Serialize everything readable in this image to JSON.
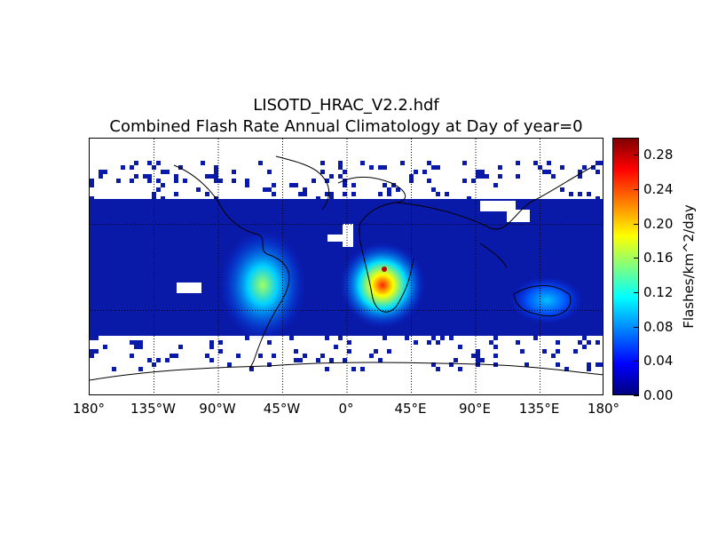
{
  "title": {
    "line1": "LISOTD_HRAC_V2.2.hdf",
    "line2": "Combined Flash Rate Annual Climatology at Day of year=0"
  },
  "map": {
    "projection": "cylindrical",
    "lon_range": [
      -180,
      180
    ],
    "lat_range": [
      -90,
      90
    ],
    "data_lat_range": [
      -38,
      38
    ],
    "graticule": true,
    "coastlines": true,
    "hotspots": [
      {
        "region": "Central Africa",
        "lon": 25,
        "lat": -2,
        "value": 0.28
      },
      {
        "region": "South America",
        "lon": -55,
        "lat": -20,
        "value": 0.16
      },
      {
        "region": "Northern Australia",
        "lon": 135,
        "lat": -15,
        "value": 0.08
      }
    ],
    "background_value": 0.02
  },
  "x_axis": {
    "ticks": [
      {
        "value": -180,
        "label": "180°"
      },
      {
        "value": -135,
        "label": "135°W"
      },
      {
        "value": -90,
        "label": "90°W"
      },
      {
        "value": -45,
        "label": "45°W"
      },
      {
        "value": 0,
        "label": "0°"
      },
      {
        "value": 45,
        "label": "45°E"
      },
      {
        "value": 90,
        "label": "90°E"
      },
      {
        "value": 135,
        "label": "135°E"
      },
      {
        "value": 180,
        "label": "180°"
      }
    ]
  },
  "colorbar": {
    "label": "Flashes/km^2/day",
    "range": [
      0.0,
      0.3
    ],
    "colormap": "jet",
    "ticks": [
      "0.00",
      "0.04",
      "0.08",
      "0.12",
      "0.16",
      "0.20",
      "0.24",
      "0.28"
    ]
  }
}
